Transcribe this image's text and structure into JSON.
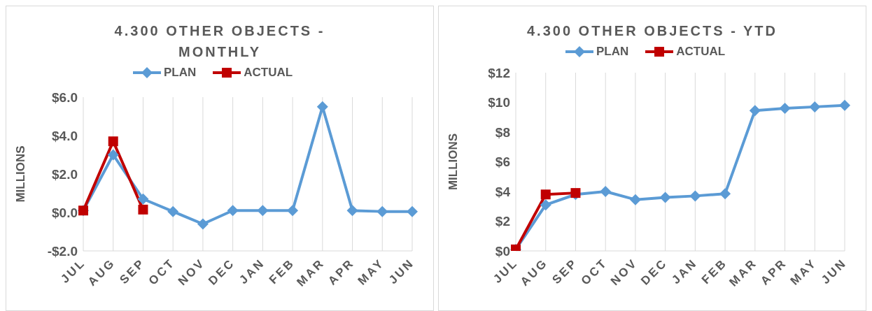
{
  "chart_data": [
    {
      "type": "line",
      "title": "4.300 OTHER OBJECTS - MONTHLY",
      "ylabel": "MILLIONS",
      "categories": [
        "JUL",
        "AUG",
        "SEP",
        "OCT",
        "NOV",
        "DEC",
        "JAN",
        "FEB",
        "MAR",
        "APR",
        "MAY",
        "JUN"
      ],
      "series": [
        {
          "name": "PLAN",
          "color": "#5b9bd5",
          "marker": "diamond",
          "values": [
            0.1,
            3.0,
            0.7,
            0.05,
            -0.6,
            0.1,
            0.1,
            0.1,
            5.5,
            0.1,
            0.05,
            0.05
          ]
        },
        {
          "name": "ACTUAL",
          "color": "#c00000",
          "marker": "square",
          "values": [
            0.1,
            3.7,
            0.15,
            null,
            null,
            null,
            null,
            null,
            null,
            null,
            null,
            null
          ]
        }
      ],
      "ylim": [
        -2,
        6
      ],
      "yticks": [
        {
          "value": -2,
          "label": "-$2.0"
        },
        {
          "value": 0,
          "label": "$0.0"
        },
        {
          "value": 2,
          "label": "$2.0"
        },
        {
          "value": 4,
          "label": "$4.0"
        },
        {
          "value": 6,
          "label": "$6.0"
        }
      ],
      "grid": "x",
      "legend": "top"
    },
    {
      "type": "line",
      "title": "4.300 OTHER OBJECTS - YTD",
      "ylabel": "MILLIONS",
      "categories": [
        "JUL",
        "AUG",
        "SEP",
        "OCT",
        "NOV",
        "DEC",
        "JAN",
        "FEB",
        "MAR",
        "APR",
        "MAY",
        "JUN"
      ],
      "series": [
        {
          "name": "PLAN",
          "color": "#5b9bd5",
          "marker": "diamond",
          "values": [
            0.1,
            3.1,
            3.8,
            4.0,
            3.45,
            3.6,
            3.7,
            3.85,
            9.45,
            9.6,
            9.7,
            9.8
          ]
        },
        {
          "name": "ACTUAL",
          "color": "#c00000",
          "marker": "square",
          "values": [
            0.1,
            3.8,
            3.9,
            null,
            null,
            null,
            null,
            null,
            null,
            null,
            null,
            null
          ]
        }
      ],
      "ylim": [
        0,
        12
      ],
      "yticks": [
        {
          "value": 0,
          "label": "$0"
        },
        {
          "value": 2,
          "label": "$2"
        },
        {
          "value": 4,
          "label": "$4"
        },
        {
          "value": 6,
          "label": "$6"
        },
        {
          "value": 8,
          "label": "$8"
        },
        {
          "value": 10,
          "label": "$10"
        },
        {
          "value": 12,
          "label": "$12"
        }
      ],
      "grid": "x",
      "legend": "top"
    }
  ]
}
